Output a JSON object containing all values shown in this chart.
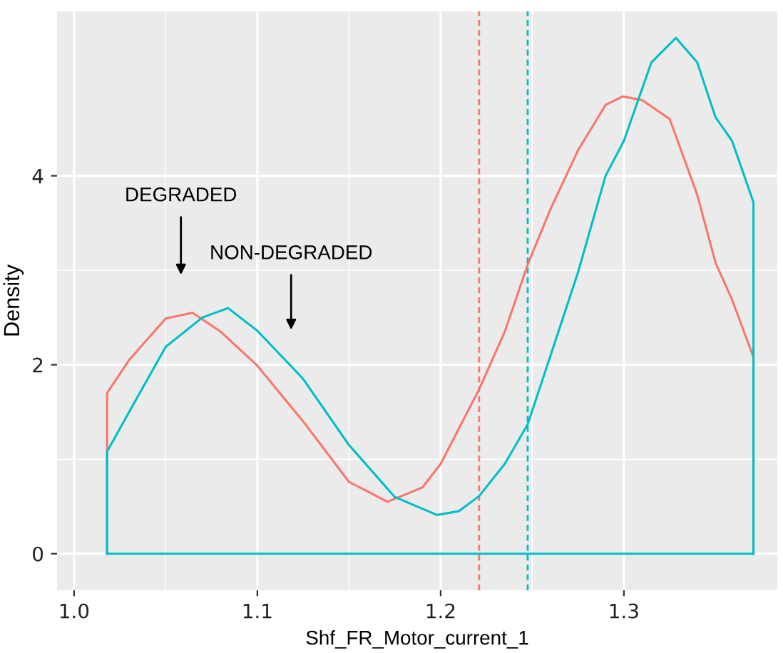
{
  "chart_data": {
    "type": "line",
    "xlabel": "Shf_FR_Motor_current_1",
    "ylabel": "Density",
    "series": [
      {
        "color": "#f8766d",
        "x": [
          1.018,
          1.018,
          1.03,
          1.05,
          1.0646,
          1.08,
          1.1,
          1.125,
          1.15,
          1.171,
          1.19,
          1.2,
          1.221,
          1.235,
          1.2475,
          1.26,
          1.275,
          1.29,
          1.2993,
          1.31,
          1.325,
          1.34,
          1.35,
          1.359,
          1.3707,
          1.3707
        ],
        "values": [
          0,
          1.7,
          2.05,
          2.49,
          2.55,
          2.35,
          1.99,
          1.4,
          0.76,
          0.55,
          0.7,
          0.95,
          1.74,
          2.35,
          3.06,
          3.65,
          4.27,
          4.75,
          4.84,
          4.8,
          4.6,
          3.8,
          3.08,
          2.69,
          2.08,
          0
        ]
      },
      {
        "color": "#00bfc4",
        "x": [
          1.018,
          1.018,
          1.03,
          1.05,
          1.07,
          1.084,
          1.1,
          1.125,
          1.15,
          1.175,
          1.198,
          1.21,
          1.221,
          1.235,
          1.2475,
          1.26,
          1.275,
          1.29,
          1.3,
          1.315,
          1.3284,
          1.34,
          1.35,
          1.359,
          1.3707,
          1.3707
        ],
        "values": [
          0,
          1.08,
          1.5,
          2.19,
          2.5,
          2.6,
          2.36,
          1.85,
          1.15,
          0.6,
          0.41,
          0.45,
          0.61,
          0.95,
          1.37,
          2.1,
          2.98,
          4.0,
          4.37,
          5.2,
          5.46,
          5.2,
          4.62,
          4.37,
          3.72,
          0
        ]
      },
      {
        "color": "#00bfc4",
        "x": [
          1.018,
          1.3707
        ],
        "values": [
          0,
          0
        ]
      }
    ],
    "ref_lines": [
      {
        "axis": "x",
        "value": 1.221,
        "color": "#f8766d",
        "line_style": "dashed"
      },
      {
        "axis": "x",
        "value": 1.2475,
        "color": "#00bfc4",
        "line_style": "dashed"
      }
    ],
    "annotations": [
      "DEGRADED",
      "NON-DEGRADED"
    ],
    "xlim": [
      0.9907,
      1.3837
    ],
    "ylim": [
      -0.387,
      5.74
    ],
    "xticks": [
      {
        "value": 1.0,
        "label": "1.0"
      },
      1.1,
      1.2,
      1.3
    ],
    "yticks": [
      0,
      2,
      4
    ],
    "grid": true,
    "legend": false
  }
}
